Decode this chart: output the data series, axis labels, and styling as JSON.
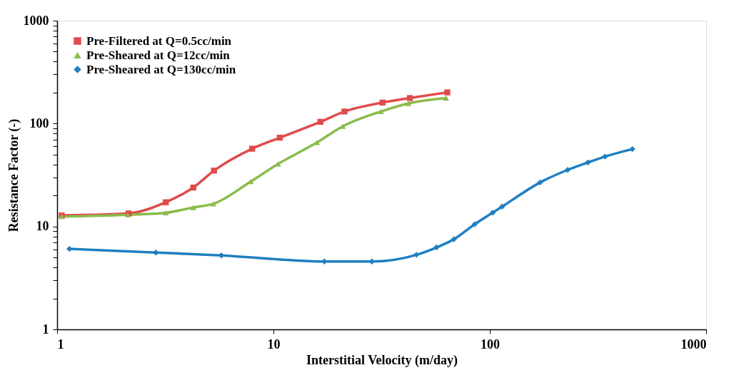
{
  "chart_data": {
    "type": "line",
    "xlabel": "Interstitial Velocity (m/day)",
    "ylabel": "Resistance Factor (-)",
    "log": "xy",
    "xlim": [
      1,
      1000
    ],
    "ylim": [
      1,
      1000
    ],
    "xticks": [
      1,
      10,
      100,
      1000
    ],
    "yticks": [
      1,
      {
        "value": 2,
        "label": null
      },
      {
        "value": 3,
        "label": null
      },
      {
        "value": 4,
        "label": null
      },
      {
        "value": 5,
        "label": null
      },
      {
        "value": 6,
        "label": null
      },
      {
        "value": 7,
        "label": null
      },
      {
        "value": 8,
        "label": null
      },
      {
        "value": 9,
        "label": null
      },
      10,
      {
        "value": 20,
        "label": null
      },
      {
        "value": 30,
        "label": null
      },
      {
        "value": 40,
        "label": null
      },
      {
        "value": 50,
        "label": null
      },
      {
        "value": 60,
        "label": null
      },
      {
        "value": 70,
        "label": null
      },
      {
        "value": 80,
        "label": null
      },
      {
        "value": 90,
        "label": null
      },
      100,
      {
        "value": 200,
        "label": null
      },
      {
        "value": 300,
        "label": null
      },
      {
        "value": 400,
        "label": null
      },
      {
        "value": 500,
        "label": null
      },
      {
        "value": 600,
        "label": null
      },
      {
        "value": 700,
        "label": null
      },
      {
        "value": 800,
        "label": null
      },
      {
        "value": 900,
        "label": null
      },
      1000
    ],
    "grid": false,
    "legend": "top left",
    "series": [
      {
        "name": "Pre-Filtered at Q=0.5cc/min",
        "color": "#e04b4b",
        "marker": "square",
        "x": [
          1.05,
          2.14,
          3.18,
          4.26,
          5.31,
          7.97,
          10.7,
          16.5,
          21.3,
          31.9,
          42.7,
          63.6
        ],
        "values": [
          12.8,
          13.4,
          17.2,
          23.9,
          34.9,
          57,
          73,
          104,
          131,
          160,
          177,
          201
        ]
      },
      {
        "name": "Pre-Sheared at Q=12cc/min",
        "color": "#8bbb4c",
        "marker": "triangle",
        "x": [
          1.05,
          2.12,
          3.18,
          4.26,
          5.27,
          7.85,
          10.5,
          15.9,
          20.9,
          31.4,
          42.1,
          62.8
        ],
        "values": [
          12.5,
          13.0,
          13.6,
          15.3,
          16.6,
          27.3,
          40.5,
          65.5,
          94,
          131,
          157,
          177
        ]
      },
      {
        "name": "Pre-Sheared at Q=130cc/min",
        "color": "#1f7fc0",
        "marker": "diamond",
        "x": [
          1.14,
          2.86,
          5.74,
          17.2,
          28.5,
          45.8,
          56.7,
          68.2,
          85.1,
          103,
          114,
          171,
          229,
          284,
          341,
          456
        ],
        "values": [
          6.06,
          5.58,
          5.23,
          4.57,
          4.57,
          5.31,
          6.26,
          7.51,
          10.5,
          13.6,
          15.6,
          26.8,
          35.5,
          41.9,
          47.8,
          56.5
        ]
      }
    ]
  }
}
